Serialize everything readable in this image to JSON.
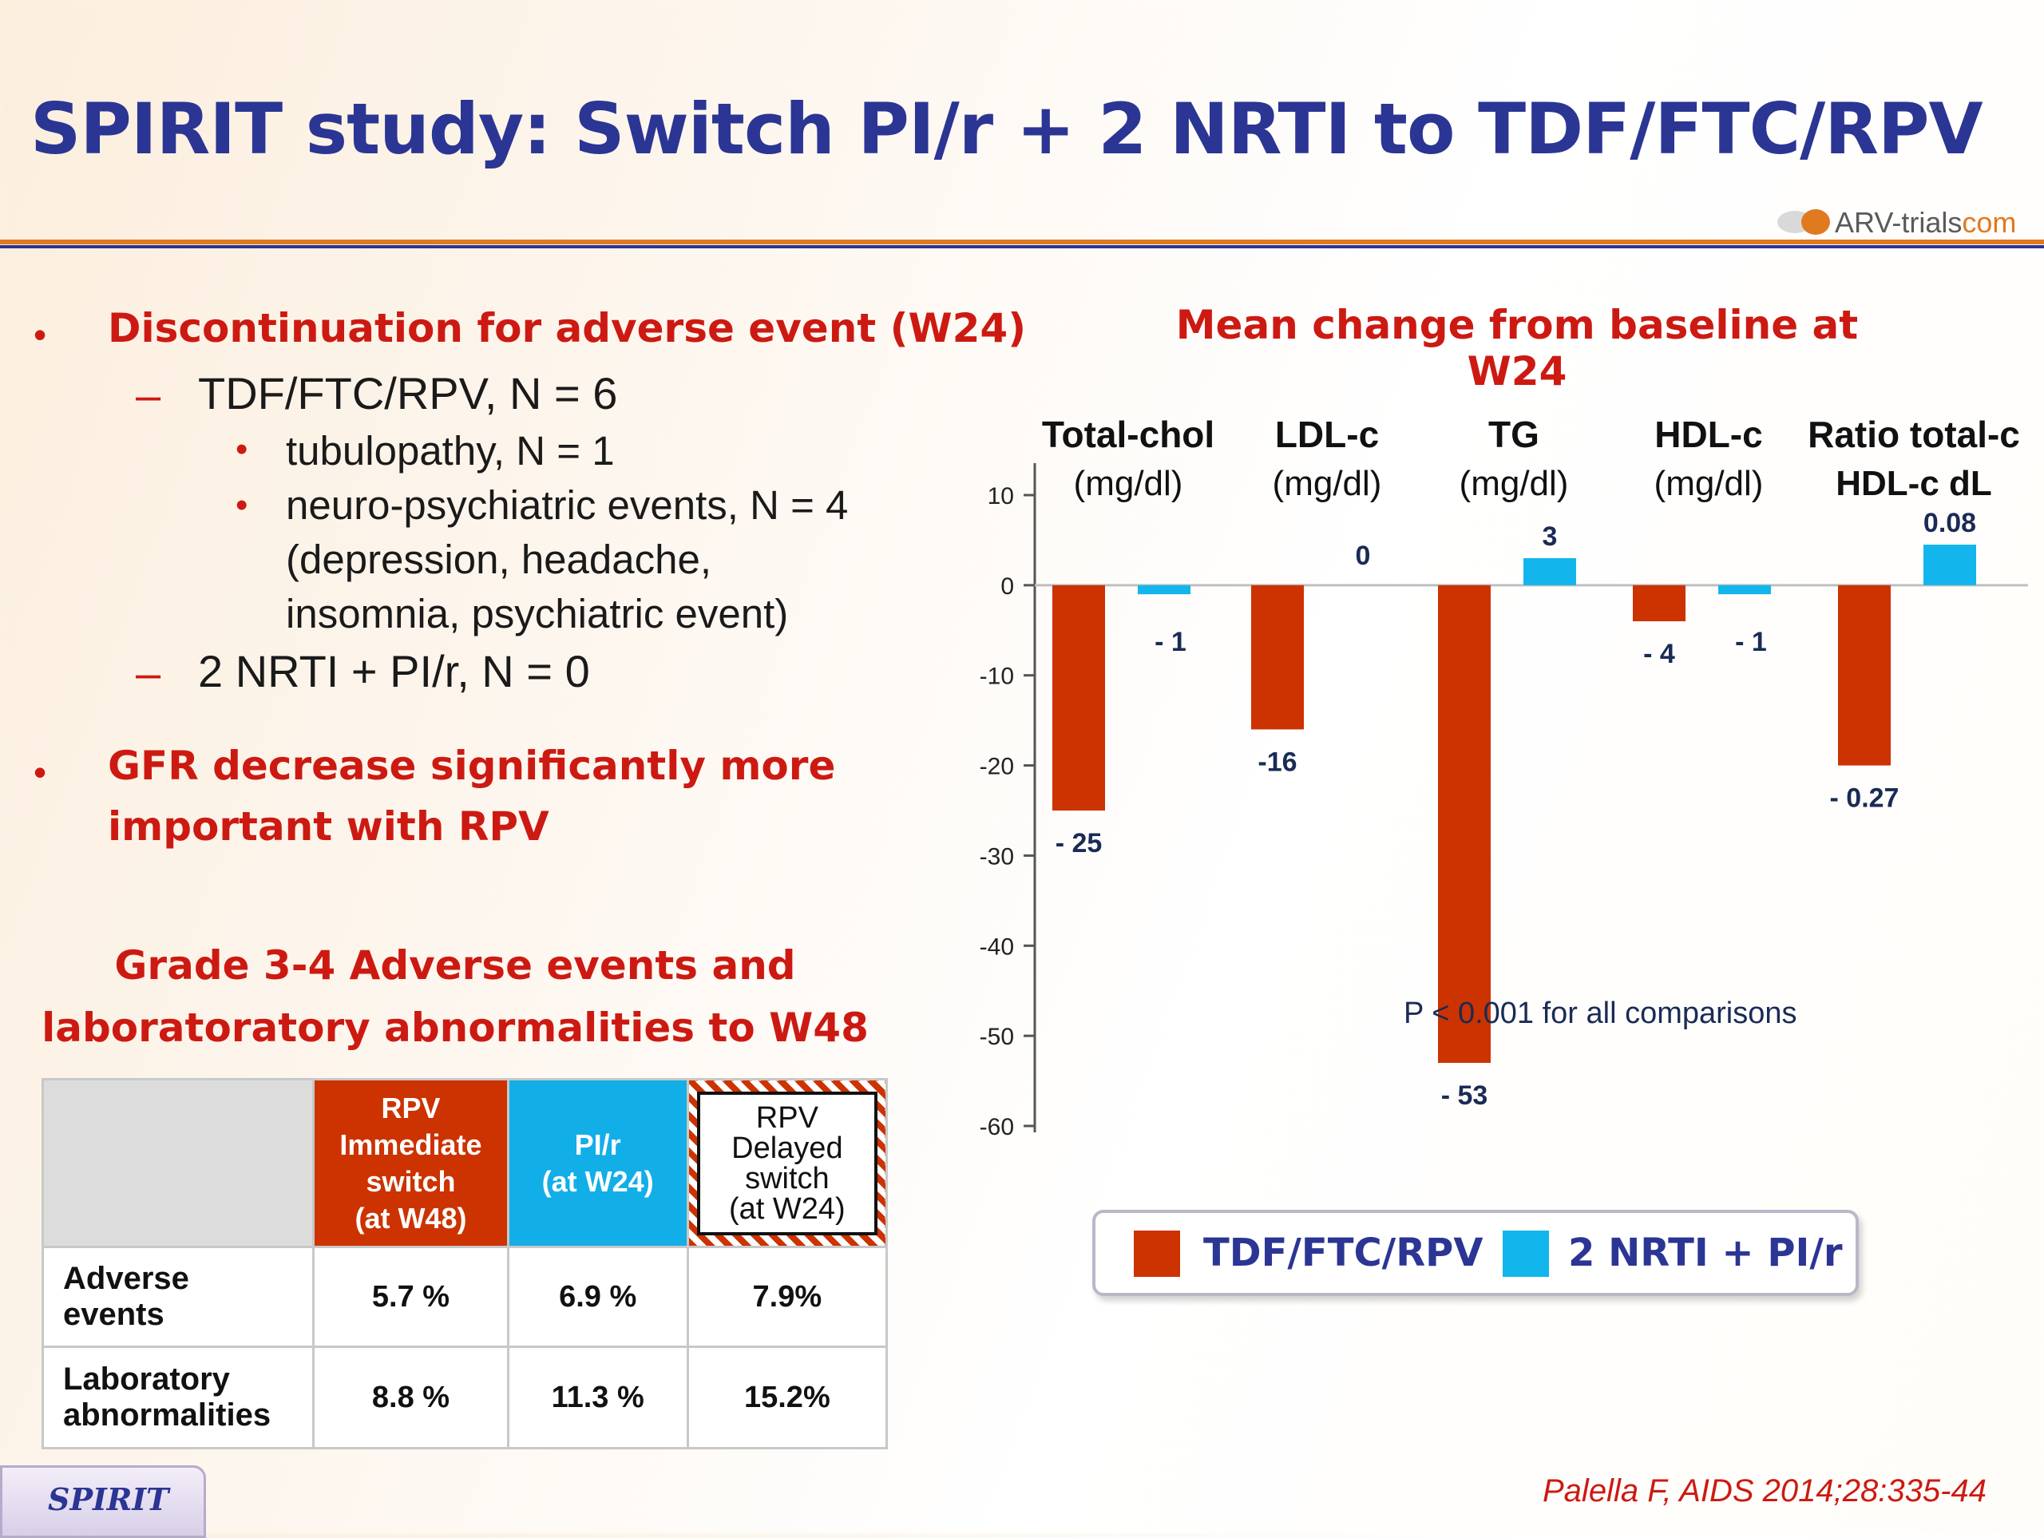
{
  "title": "SPIRIT study: Switch PI/r + 2 NRTI to TDF/FTC/RPV",
  "logo": {
    "text_main": "ARV-trials",
    "text_suffix": "com"
  },
  "bullets": {
    "b1": "Discontinuation for adverse event (W24)",
    "b1_sub1": "TDF/FTC/RPV, N = 6",
    "b1_sub1_items": [
      "tubulopathy, N = 1",
      "neuro-psychiatric events, N = 4",
      "(depression, headache,",
      "insomnia, psychiatric event)"
    ],
    "b1_sub2": "2 NRTI + PI/r, N = 0",
    "b2_line1": "GFR decrease significantly more",
    "b2_line2": "important with RPV",
    "dash": "–",
    "dot": "•"
  },
  "table": {
    "heading_line1": "Grade 3-4 Adverse events and",
    "heading_line2": "laboratoratory abnormalities to W48",
    "headers": [
      {
        "lines": [
          "RPV",
          "Immediate",
          "switch",
          "(at  W48)"
        ],
        "color": "#cc3300"
      },
      {
        "lines": [
          "PI/r",
          "(at  W24)"
        ],
        "color": "#12aee8"
      },
      {
        "lines": [
          "RPV",
          "Delayed",
          "switch",
          "(at  W24)"
        ],
        "color": "#ffffff"
      }
    ],
    "rows": [
      {
        "label_lines": [
          "Adverse",
          "events"
        ],
        "values": [
          "5.7 %",
          "6.9 %",
          "7.9%"
        ]
      },
      {
        "label_lines": [
          "Laboratory",
          "abnormalities"
        ],
        "values": [
          "8.8 %",
          "11.3 %",
          "15.2%"
        ]
      }
    ]
  },
  "chart_data": {
    "type": "bar",
    "title": "Mean change from baseline at W24",
    "groups": [
      {
        "label": "Total-chol",
        "unit": "(mg/dl)",
        "values": [
          -25,
          -1
        ],
        "value_labels": [
          "- 25",
          "- 1"
        ]
      },
      {
        "label": "LDL-c",
        "unit": "(mg/dl)",
        "values": [
          -16,
          0
        ],
        "value_labels": [
          "-16",
          "0"
        ]
      },
      {
        "label": "TG",
        "unit": "(mg/dl)",
        "values": [
          -53,
          3
        ],
        "value_labels": [
          "- 53",
          "3"
        ]
      },
      {
        "label": "HDL-c",
        "unit": "(mg/dl)",
        "values": [
          -4,
          -1
        ],
        "value_labels": [
          "- 4",
          "- 1"
        ]
      },
      {
        "label": "Ratio total-c",
        "unit": "HDL-c dL",
        "values": [
          -0.27,
          0.08
        ],
        "value_labels": [
          "- 0.27",
          "0.08"
        ]
      }
    ],
    "series": [
      {
        "name": "TDF/FTC/RPV",
        "color": "#cc3300"
      },
      {
        "name": "2 NRTI + PI/r",
        "color": "#12b6ec"
      }
    ],
    "ylim": [
      -60,
      10
    ],
    "yticks": [
      10,
      0,
      -10,
      -20,
      -30,
      -40,
      -50,
      -60
    ],
    "ratio_group_display": [
      -20,
      4.5
    ],
    "annotation": "P < 0.001 for all comparisons",
    "legend_position": "bottom"
  },
  "footer": {
    "label": "SPIRIT",
    "citation": "Palella F, AIDS 2014;28:335-44"
  }
}
